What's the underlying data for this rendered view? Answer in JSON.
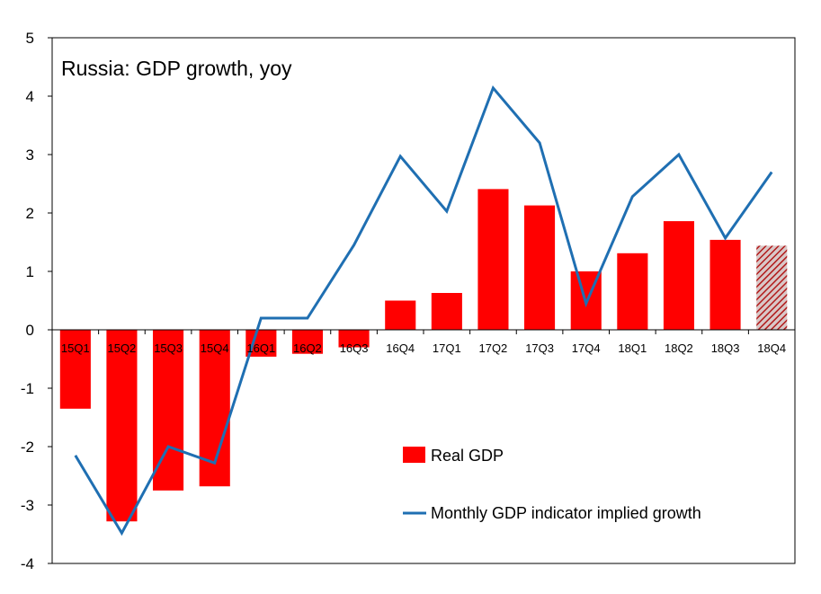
{
  "chart_data": {
    "type": "bar",
    "title": "Russia: GDP growth, yoy",
    "categories": [
      "15Q1",
      "15Q2",
      "15Q3",
      "15Q4",
      "16Q1",
      "16Q2",
      "16Q3",
      "16Q4",
      "17Q1",
      "17Q2",
      "17Q3",
      "17Q4",
      "18Q1",
      "18Q2",
      "18Q3",
      "18Q4"
    ],
    "series": [
      {
        "name": "Real GDP",
        "type": "bar",
        "color": "#ff0000",
        "values": [
          -1.35,
          -3.28,
          -2.75,
          -2.68,
          -0.46,
          -0.41,
          -0.3,
          0.5,
          0.63,
          2.41,
          2.13,
          1.0,
          1.31,
          1.86,
          1.54,
          1.44
        ],
        "hatched_last": true
      },
      {
        "name": "Monthly GDP indicator implied growth",
        "type": "line",
        "color": "#1f6fb2",
        "values": [
          -2.15,
          -3.48,
          -2.0,
          -2.28,
          0.2,
          0.2,
          1.45,
          2.97,
          2.03,
          4.14,
          3.2,
          0.45,
          2.28,
          3.0,
          1.57,
          2.7
        ]
      }
    ],
    "ylim": [
      -4,
      5
    ],
    "yticks": [
      -4,
      -3,
      -2,
      -1,
      0,
      1,
      2,
      3,
      4,
      5
    ],
    "grid": false,
    "legend_position": "bottom-right"
  }
}
